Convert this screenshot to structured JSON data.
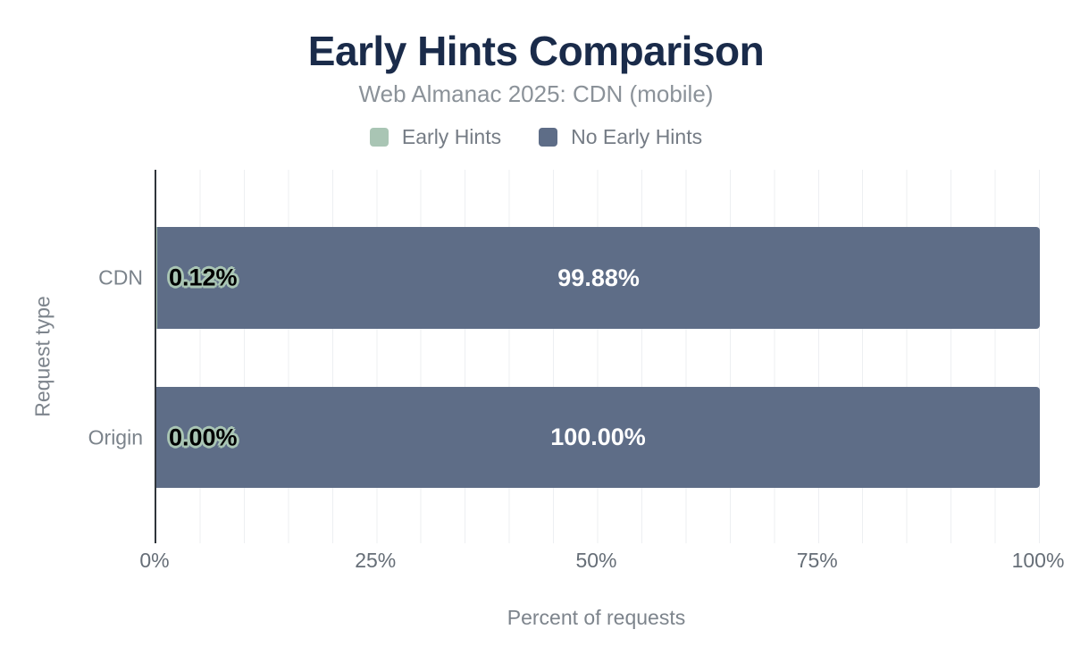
{
  "header": {
    "title": "Early Hints Comparison",
    "subtitle": "Web Almanac 2025: CDN (mobile)"
  },
  "chart_data": {
    "type": "bar",
    "orientation": "horizontal",
    "stacked": true,
    "title": "Early Hints Comparison",
    "subtitle": "Web Almanac 2025: CDN (mobile)",
    "categories": [
      "CDN",
      "Origin"
    ],
    "series": [
      {
        "name": "Early Hints",
        "color": "#a9c5b4",
        "values": [
          0.12,
          0.0
        ],
        "labels": [
          "0.12%",
          "0.00%"
        ]
      },
      {
        "name": "No Early Hints",
        "color": "#5e6d87",
        "values": [
          99.88,
          100.0
        ],
        "labels": [
          "99.88%",
          "100.00%"
        ]
      }
    ],
    "xlabel": "Percent of requests",
    "ylabel": "Request type",
    "xlim": [
      0,
      100
    ],
    "x_ticks": [
      "0%",
      "25%",
      "50%",
      "75%",
      "100%"
    ],
    "x_tick_values": [
      0,
      25,
      50,
      75,
      100
    ],
    "grid": "vertical minor gridlines every 5%",
    "legend_position": "top center"
  }
}
